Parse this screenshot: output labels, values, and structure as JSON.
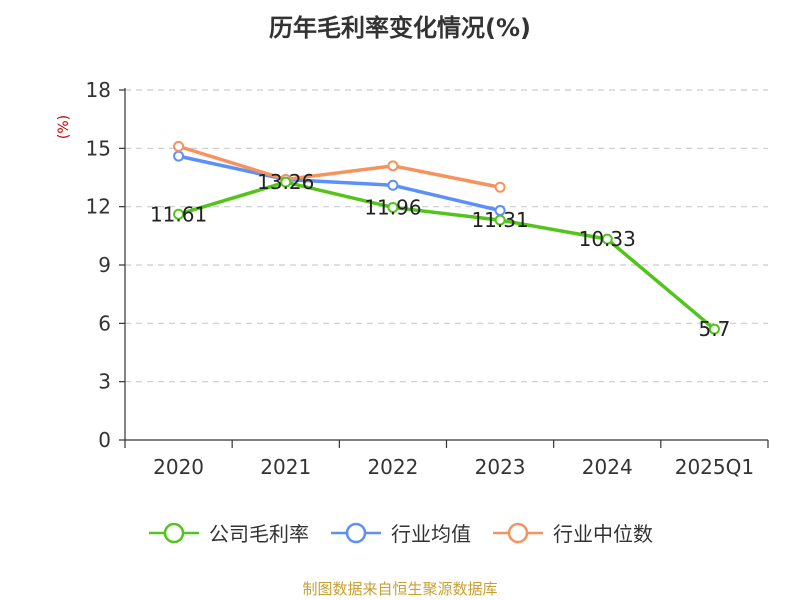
{
  "chart_data": {
    "type": "line",
    "title": "历年毛利率变化情况(%)",
    "ylabel": "(%)",
    "xlabel": "",
    "categories": [
      "2020",
      "2021",
      "2022",
      "2023",
      "2024",
      "2025Q1"
    ],
    "yticks": [
      "0",
      "3",
      "6",
      "9",
      "12",
      "15",
      "18"
    ],
    "ylim": [
      0,
      18
    ],
    "grid": true,
    "legend_position": "bottom",
    "series": [
      {
        "name": "公司毛利率",
        "color": "#52c41a",
        "values": [
          11.61,
          13.26,
          11.96,
          11.31,
          10.33,
          5.7
        ],
        "labels": [
          "11.61",
          "13.26",
          "11.96",
          "11.31",
          "10.33",
          "5.7"
        ]
      },
      {
        "name": "行业均值",
        "color": "#5b8ff9",
        "values": [
          14.6,
          13.4,
          13.1,
          11.8,
          null,
          null
        ]
      },
      {
        "name": "行业中位数",
        "color": "#f7925c",
        "values": [
          15.1,
          13.4,
          14.1,
          13.0,
          null,
          null
        ]
      }
    ],
    "source": "制图数据来自恒生聚源数据库"
  }
}
